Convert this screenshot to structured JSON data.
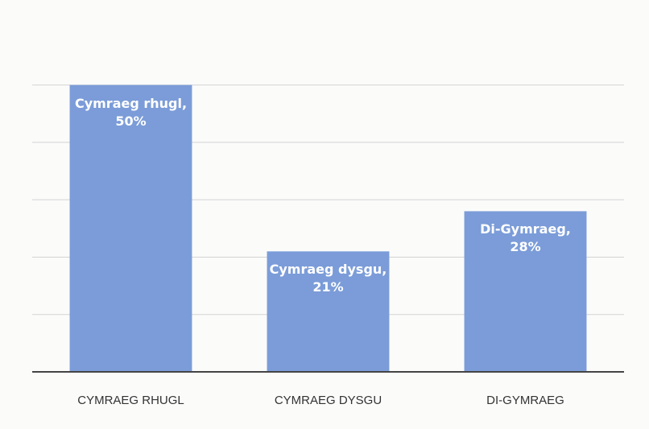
{
  "chart_data": {
    "type": "bar",
    "categories": [
      "CYMRAEG RHUGL",
      "CYMRAEG DYSGU",
      "DI-GYMRAEG"
    ],
    "values": [
      50,
      21,
      28
    ],
    "value_labels": [
      "Cymraeg rhugl, 50%",
      "Cymraeg dysgu, 21%",
      "Di-Gymraeg, 28%"
    ],
    "color": "#7b9cd8",
    "ylim": [
      0,
      55
    ],
    "yticks": [
      0,
      10,
      20,
      30,
      40,
      50
    ],
    "grid": true
  }
}
